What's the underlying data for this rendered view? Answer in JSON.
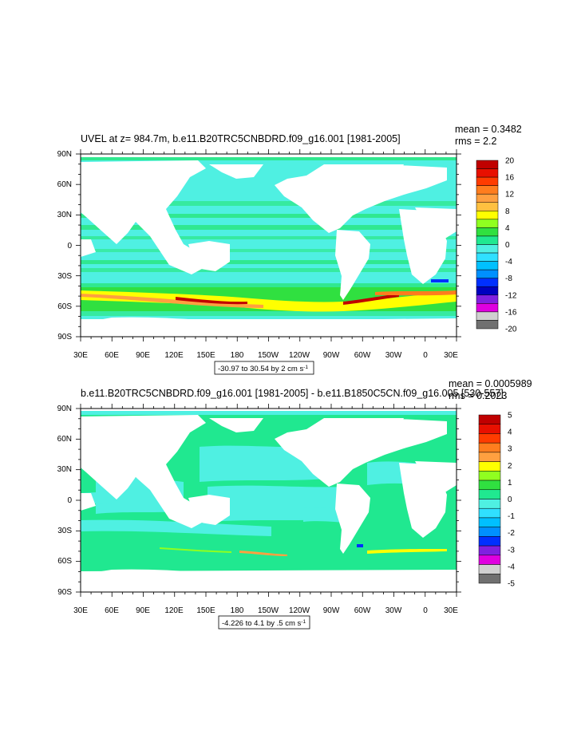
{
  "colors": {
    "ocean_base": "#4ff0e2",
    "land": "#ffffff",
    "frame": "#000000"
  },
  "panels": [
    {
      "id": "top",
      "title": "UVEL at z= 984.7m, b.e11.B20TRC5CNBDRD.f09_g16.001 [1981-2005]",
      "stats": {
        "mean": "mean = 0.3482",
        "rms": "rms = 2.2"
      },
      "range_label": "-30.97 to 30.54 by 2 cm s",
      "range_unit_sup": "-1",
      "lat_labels": [
        "90N",
        "60N",
        "30N",
        "0",
        "30S",
        "60S",
        "90S"
      ],
      "lon_labels": [
        "30E",
        "60E",
        "90E",
        "120E",
        "150E",
        "180",
        "150W",
        "120W",
        "90W",
        "60W",
        "30W",
        "0",
        "30E"
      ],
      "colorbar": {
        "labels": [
          "20",
          "16",
          "12",
          "8",
          "4",
          "0",
          "-4",
          "-8",
          "-12",
          "-16",
          "-20"
        ],
        "colors": [
          "#c00000",
          "#e81000",
          "#ff3c00",
          "#ff7d1e",
          "#ffa040",
          "#ffc040",
          "#ffff00",
          "#90ff20",
          "#30e040",
          "#20e890",
          "#4ff0e2",
          "#30e0ff",
          "#00c0ff",
          "#0090ff",
          "#0030ff",
          "#0000c0",
          "#8020e0",
          "#e000e0",
          "#d0d0d0",
          "#707070"
        ]
      }
    },
    {
      "id": "bottom",
      "title": "b.e11.B20TRC5CNBDRD.f09_g16.001 [1981-2005] - b.e11.B1850C5CN.f09_g16.005 [530-557]",
      "stats": {
        "mean": "mean = 0.0005989",
        "rms": "rms = 0.2023"
      },
      "range_label": "-4.226 to 4.1 by .5 cm s",
      "range_unit_sup": "-1",
      "lat_labels": [
        "90N",
        "60N",
        "30N",
        "0",
        "30S",
        "60S",
        "90S"
      ],
      "lon_labels": [
        "30E",
        "60E",
        "90E",
        "120E",
        "150E",
        "180",
        "150W",
        "120W",
        "90W",
        "60W",
        "30W",
        "0",
        "30E"
      ],
      "colorbar": {
        "labels": [
          "5",
          "4",
          "3",
          "2",
          "1",
          "0",
          "-1",
          "-2",
          "-3",
          "-4",
          "-5"
        ],
        "colors": [
          "#c00000",
          "#e81000",
          "#ff3c00",
          "#ff7d1e",
          "#ffa040",
          "#ffff00",
          "#90ff20",
          "#30e040",
          "#20e890",
          "#4ff0e2",
          "#30e0ff",
          "#00c0ff",
          "#0090ff",
          "#0030ff",
          "#8020e0",
          "#e000e0",
          "#d0d0d0",
          "#707070"
        ]
      }
    }
  ]
}
